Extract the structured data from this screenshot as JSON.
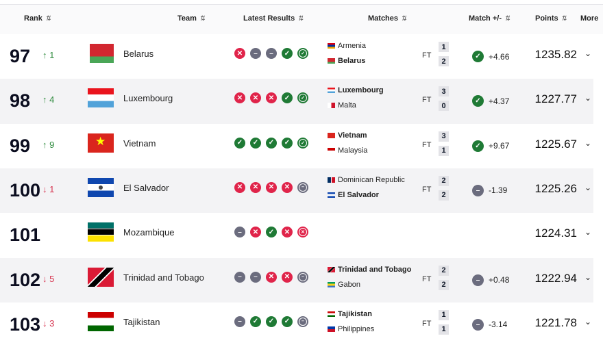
{
  "header": {
    "rank": "Rank",
    "team": "Team",
    "latest": "Latest Results",
    "matches": "Matches",
    "match_pm": "Match +/-",
    "points": "Points",
    "more": "More",
    "sort_icon": "sort-arrows-icon"
  },
  "colors": {
    "win": "#1f7a35",
    "loss": "#e0244a",
    "draw": "#6b6c7e",
    "up": "#2e8b3d",
    "down": "#d6324e"
  },
  "rows": [
    {
      "rank": "97",
      "dir": "up",
      "change": "1",
      "team": "Belarus",
      "flag": "belarus-flag",
      "results": [
        "L",
        "D",
        "D",
        "W",
        "W"
      ],
      "match": {
        "home": "Armenia",
        "home_flag": "armenia-flag",
        "away": "Belarus",
        "away_flag": "belarus-flag",
        "bold": "away",
        "status": "FT",
        "home_score": "1",
        "away_score": "2"
      },
      "pm_result": "W",
      "pm": "+4.66",
      "points": "1235.82"
    },
    {
      "rank": "98",
      "dir": "up",
      "change": "4",
      "team": "Luxembourg",
      "flag": "luxembourg-flag",
      "results": [
        "L",
        "L",
        "L",
        "W",
        "W"
      ],
      "match": {
        "home": "Luxembourg",
        "home_flag": "luxembourg-flag",
        "away": "Malta",
        "away_flag": "malta-flag",
        "bold": "home",
        "status": "FT",
        "home_score": "3",
        "away_score": "0"
      },
      "pm_result": "W",
      "pm": "+4.37",
      "points": "1227.77"
    },
    {
      "rank": "99",
      "dir": "up",
      "change": "9",
      "team": "Vietnam",
      "flag": "vietnam-flag",
      "results": [
        "W",
        "W",
        "W",
        "W",
        "W"
      ],
      "match": {
        "home": "Vietnam",
        "home_flag": "vietnam-flag",
        "away": "Malaysia",
        "away_flag": "malaysia-flag",
        "bold": "home",
        "status": "FT",
        "home_score": "3",
        "away_score": "1"
      },
      "pm_result": "W",
      "pm": "+9.67",
      "points": "1225.67"
    },
    {
      "rank": "100",
      "dir": "down",
      "change": "1",
      "team": "El Salvador",
      "flag": "el-salvador-flag",
      "results": [
        "L",
        "L",
        "L",
        "L",
        "D"
      ],
      "match": {
        "home": "Dominican Republic",
        "home_flag": "dominican-republic-flag",
        "away": "El Salvador",
        "away_flag": "el-salvador-flag",
        "bold": "away",
        "status": "FT",
        "home_score": "2",
        "away_score": "2"
      },
      "pm_result": "D",
      "pm": "-1.39",
      "points": "1225.26"
    },
    {
      "rank": "101",
      "dir": "",
      "change": "",
      "team": "Mozambique",
      "flag": "mozambique-flag",
      "results": [
        "D",
        "L",
        "W",
        "L",
        "L"
      ],
      "match": null,
      "pm_result": "",
      "pm": "",
      "points": "1224.31"
    },
    {
      "rank": "102",
      "dir": "down",
      "change": "5",
      "team": "Trinidad and Tobago",
      "flag": "trinidad-flag",
      "results": [
        "D",
        "D",
        "L",
        "L",
        "D"
      ],
      "match": {
        "home": "Trinidad and Tobago",
        "home_flag": "trinidad-flag",
        "away": "Gabon",
        "away_flag": "gabon-flag",
        "bold": "home",
        "status": "FT",
        "home_score": "2",
        "away_score": "2"
      },
      "pm_result": "D",
      "pm": "+0.48",
      "points": "1222.94"
    },
    {
      "rank": "103",
      "dir": "down",
      "change": "3",
      "team": "Tajikistan",
      "flag": "tajikistan-flag",
      "results": [
        "D",
        "W",
        "W",
        "W",
        "D"
      ],
      "match": {
        "home": "Tajikistan",
        "home_flag": "tajikistan-flag",
        "away": "Philippines",
        "away_flag": "philippines-flag",
        "bold": "home",
        "status": "FT",
        "home_score": "1",
        "away_score": "1"
      },
      "pm_result": "D",
      "pm": "-3.14",
      "points": "1221.78"
    }
  ]
}
